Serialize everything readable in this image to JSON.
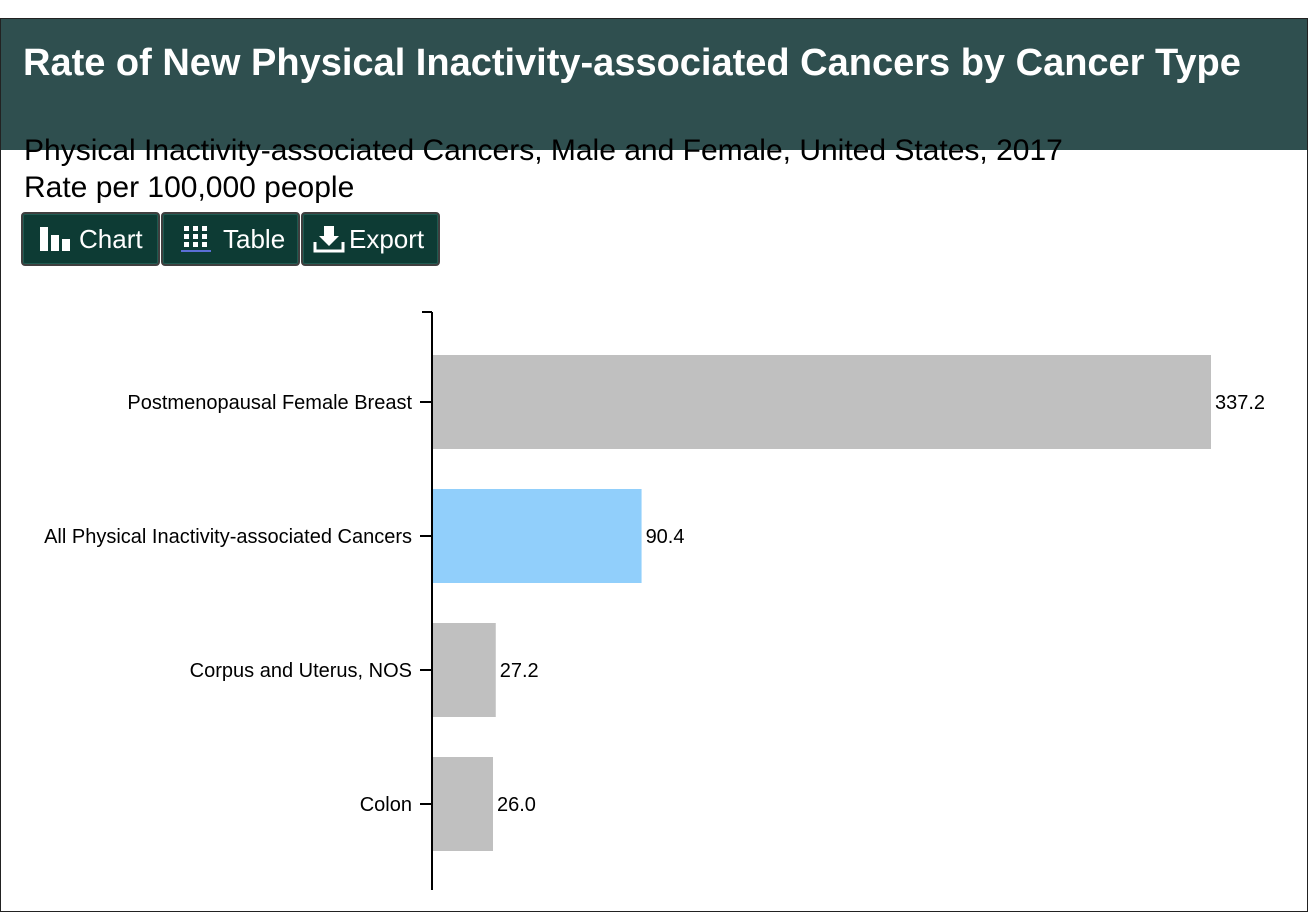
{
  "header": {
    "title": "Rate of New Physical Inactivity-associated Cancers by Cancer Type"
  },
  "subtitle": {
    "line1": "Physical Inactivity-associated Cancers, Male and Female, United States, 2017",
    "line2": "Rate per 100,000 people"
  },
  "toolbar": {
    "chart_label": "Chart",
    "table_label": "Table",
    "export_label": "Export",
    "chart_icon": "bar-chart-icon",
    "table_icon": "grid-icon",
    "export_icon": "download-icon"
  },
  "colors": {
    "header_bg": "#2f4f4f",
    "button_bg": "#0d3b34",
    "bar_default": "#c0c0c0",
    "bar_highlight": "#91cffb"
  },
  "chart_data": {
    "type": "bar",
    "orientation": "horizontal",
    "categories": [
      "Postmenopausal Female Breast",
      "All Physical Inactivity-associated Cancers",
      "Corpus and Uterus, NOS",
      "Colon"
    ],
    "values": [
      337.2,
      90.4,
      27.2,
      26.0
    ],
    "value_labels": [
      "337.2",
      "90.4",
      "27.2",
      "26.0"
    ],
    "highlight": [
      false,
      true,
      false,
      false
    ],
    "xlim": [
      0,
      337.2
    ],
    "grid": false,
    "legend": "none"
  }
}
